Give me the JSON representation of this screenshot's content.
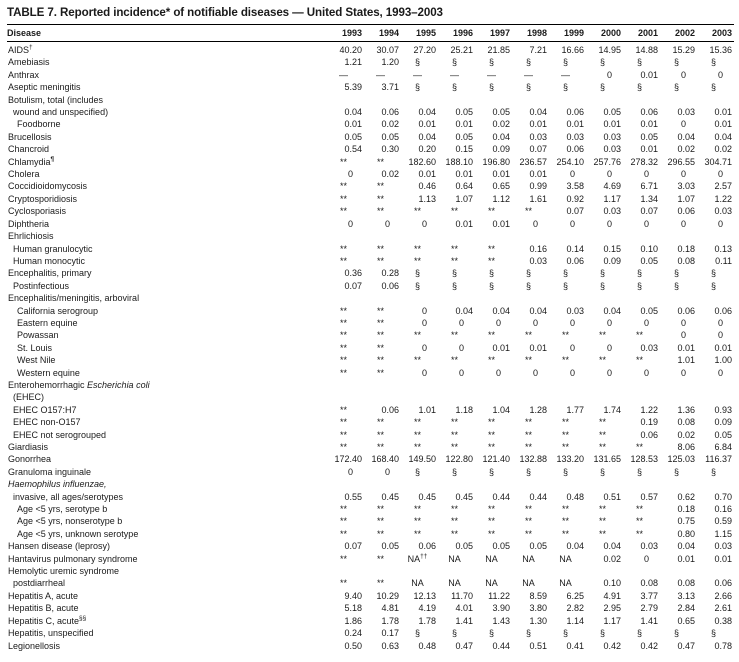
{
  "page": {
    "title": "TABLE 7. Reported incidence* of notifiable diseases — United States, 1993–2003"
  },
  "table": {
    "columns": [
      "Disease",
      "1993",
      "1994",
      "1995",
      "1996",
      "1997",
      "1998",
      "1999",
      "2000",
      "2001",
      "2002",
      "2003"
    ],
    "rows": [
      {
        "label": "AIDS",
        "sup": "†",
        "indent": 0,
        "values": [
          "40.20",
          "30.07",
          "27.20",
          "25.21",
          "21.85",
          "7.21",
          "16.66",
          "14.95",
          "14.88",
          "15.29",
          "15.36"
        ]
      },
      {
        "label": "Amebiasis",
        "indent": 0,
        "values": [
          "1.21",
          "1.20",
          "§",
          "§",
          "§",
          "§",
          "§",
          "§",
          "§",
          "§",
          "§"
        ]
      },
      {
        "label": "Anthrax",
        "indent": 0,
        "values": [
          "—",
          "—",
          "—",
          "—",
          "—",
          "—",
          "—",
          "0",
          "0.01",
          "0",
          "0"
        ]
      },
      {
        "label": "Aseptic meningitis",
        "indent": 0,
        "values": [
          "5.39",
          "3.71",
          "§",
          "§",
          "§",
          "§",
          "§",
          "§",
          "§",
          "§",
          "§"
        ]
      },
      {
        "label": "Botulism, total (includes",
        "indent": 0,
        "values": []
      },
      {
        "label": "wound and unspecified)",
        "indent": 1,
        "values": [
          "0.04",
          "0.06",
          "0.04",
          "0.05",
          "0.05",
          "0.04",
          "0.06",
          "0.05",
          "0.06",
          "0.03",
          "0.01"
        ]
      },
      {
        "label": "Foodborne",
        "indent": 2,
        "values": [
          "0.01",
          "0.02",
          "0.01",
          "0.01",
          "0.02",
          "0.01",
          "0.01",
          "0.01",
          "0.01",
          "0",
          "0.01"
        ]
      },
      {
        "label": "Brucellosis",
        "indent": 0,
        "values": [
          "0.05",
          "0.05",
          "0.04",
          "0.05",
          "0.04",
          "0.03",
          "0.03",
          "0.03",
          "0.05",
          "0.04",
          "0.04"
        ]
      },
      {
        "label": "Chancroid",
        "indent": 0,
        "values": [
          "0.54",
          "0.30",
          "0.20",
          "0.15",
          "0.09",
          "0.07",
          "0.06",
          "0.03",
          "0.01",
          "0.02",
          "0.02"
        ]
      },
      {
        "label": "Chlamydia",
        "sup": "¶",
        "sup_bold": true,
        "indent": 0,
        "values": [
          "**",
          "**",
          "182.60",
          "188.10",
          "196.80",
          "236.57",
          "254.10",
          "257.76",
          "278.32",
          "296.55",
          "304.71"
        ]
      },
      {
        "label": "Cholera",
        "indent": 0,
        "values": [
          "0",
          "0.02",
          "0.01",
          "0.01",
          "0.01",
          "0.01",
          "0",
          "0",
          "0",
          "0",
          "0"
        ]
      },
      {
        "label": "Coccidioidomycosis",
        "indent": 0,
        "values": [
          "**",
          "**",
          "0.46",
          "0.64",
          "0.65",
          "0.99",
          "3.58",
          "4.69",
          "6.71",
          "3.03",
          "2.57"
        ]
      },
      {
        "label": "Cryptosporidiosis",
        "indent": 0,
        "values": [
          "**",
          "**",
          "1.13",
          "1.07",
          "1.12",
          "1.61",
          "0.92",
          "1.17",
          "1.34",
          "1.07",
          "1.22"
        ]
      },
      {
        "label": "Cyclosporiasis",
        "indent": 0,
        "values": [
          "**",
          "**",
          "**",
          "**",
          "**",
          "**",
          "0.07",
          "0.03",
          "0.07",
          "0.06",
          "0.03"
        ]
      },
      {
        "label": "Diphtheria",
        "indent": 0,
        "values": [
          "0",
          "0",
          "0",
          "0.01",
          "0.01",
          "0",
          "0",
          "0",
          "0",
          "0",
          "0"
        ]
      },
      {
        "label": "Ehrlichiosis",
        "indent": 0,
        "values": []
      },
      {
        "label": "Human granulocytic",
        "indent": 1,
        "values": [
          "**",
          "**",
          "**",
          "**",
          "**",
          "0.16",
          "0.14",
          "0.15",
          "0.10",
          "0.18",
          "0.13"
        ]
      },
      {
        "label": "Human monocytic",
        "indent": 1,
        "values": [
          "**",
          "**",
          "**",
          "**",
          "**",
          "0.03",
          "0.06",
          "0.09",
          "0.05",
          "0.08",
          "0.11"
        ]
      },
      {
        "label": "Encephalitis, primary",
        "indent": 0,
        "values": [
          "0.36",
          "0.28",
          "§",
          "§",
          "§",
          "§",
          "§",
          "§",
          "§",
          "§",
          "§"
        ]
      },
      {
        "label": "Postinfectious",
        "indent": 1,
        "values": [
          "0.07",
          "0.06",
          "§",
          "§",
          "§",
          "§",
          "§",
          "§",
          "§",
          "§",
          "§"
        ]
      },
      {
        "label": "Encephalitis/meningitis, arboviral",
        "indent": 0,
        "values": []
      },
      {
        "label": "California serogroup",
        "indent": 2,
        "values": [
          "**",
          "**",
          "0",
          "0.04",
          "0.04",
          "0.04",
          "0.03",
          "0.04",
          "0.05",
          "0.06",
          "0.06"
        ]
      },
      {
        "label": "Eastern equine",
        "indent": 2,
        "values": [
          "**",
          "**",
          "0",
          "0",
          "0",
          "0",
          "0",
          "0",
          "0",
          "0",
          "0"
        ]
      },
      {
        "label": "Powassan",
        "indent": 2,
        "values": [
          "**",
          "**",
          "**",
          "**",
          "**",
          "**",
          "**",
          "**",
          "**",
          "0",
          "0"
        ]
      },
      {
        "label": "St. Louis",
        "indent": 2,
        "values": [
          "**",
          "**",
          "0",
          "0",
          "0.01",
          "0.01",
          "0",
          "0",
          "0.03",
          "0.01",
          "0.01"
        ]
      },
      {
        "label": "West Nile",
        "indent": 2,
        "values": [
          "**",
          "**",
          "**",
          "**",
          "**",
          "**",
          "**",
          "**",
          "**",
          "1.01",
          "1.00"
        ]
      },
      {
        "label": "Western equine",
        "indent": 2,
        "values": [
          "**",
          "**",
          "0",
          "0",
          "0",
          "0",
          "0",
          "0",
          "0",
          "0",
          "0"
        ]
      },
      {
        "parts": [
          [
            "Enterohemorrhagic ",
            false
          ],
          [
            "Escherichia coli",
            true
          ]
        ],
        "indent": 0,
        "values": []
      },
      {
        "label": "(EHEC)",
        "indent": 1,
        "values": []
      },
      {
        "label": "EHEC O157:H7",
        "indent": 1,
        "values": [
          "**",
          "0.06",
          "1.01",
          "1.18",
          "1.04",
          "1.28",
          "1.77",
          "1.74",
          "1.22",
          "1.36",
          "0.93"
        ]
      },
      {
        "label": "EHEC non-O157",
        "indent": 1,
        "values": [
          "**",
          "**",
          "**",
          "**",
          "**",
          "**",
          "**",
          "**",
          "0.19",
          "0.08",
          "0.09"
        ]
      },
      {
        "label": "EHEC not serogrouped",
        "indent": 1,
        "values": [
          "**",
          "**",
          "**",
          "**",
          "**",
          "**",
          "**",
          "**",
          "0.06",
          "0.02",
          "0.05"
        ]
      },
      {
        "label": "Giardiasis",
        "indent": 0,
        "values": [
          "**",
          "**",
          "**",
          "**",
          "**",
          "**",
          "**",
          "**",
          "**",
          "8.06",
          "6.84"
        ]
      },
      {
        "label": "Gonorrhea",
        "indent": 0,
        "values": [
          "172.40",
          "168.40",
          "149.50",
          "122.80",
          "121.40",
          "132.88",
          "133.20",
          "131.65",
          "128.53",
          "125.03",
          "116.37"
        ]
      },
      {
        "label": "Granuloma inguinale",
        "indent": 0,
        "values": [
          "0",
          "0",
          "§",
          "§",
          "§",
          "§",
          "§",
          "§",
          "§",
          "§",
          "§"
        ]
      },
      {
        "parts": [
          [
            "Haemophilus influenzae,",
            true
          ]
        ],
        "indent": 0,
        "values": []
      },
      {
        "label": "invasive, all ages/serotypes",
        "indent": 1,
        "values": [
          "0.55",
          "0.45",
          "0.45",
          "0.45",
          "0.44",
          "0.44",
          "0.48",
          "0.51",
          "0.57",
          "0.62",
          "0.70"
        ]
      },
      {
        "label": "Age <5 yrs, serotype b",
        "indent": 2,
        "values": [
          "**",
          "**",
          "**",
          "**",
          "**",
          "**",
          "**",
          "**",
          "**",
          "0.18",
          "0.16"
        ]
      },
      {
        "label": "Age <5 yrs, nonserotype b",
        "indent": 2,
        "values": [
          "**",
          "**",
          "**",
          "**",
          "**",
          "**",
          "**",
          "**",
          "**",
          "0.75",
          "0.59"
        ]
      },
      {
        "label": "Age <5 yrs, unknown serotype",
        "indent": 2,
        "values": [
          "**",
          "**",
          "**",
          "**",
          "**",
          "**",
          "**",
          "**",
          "**",
          "0.80",
          "1.15"
        ]
      },
      {
        "label": "Hansen disease (leprosy)",
        "indent": 0,
        "values": [
          "0.07",
          "0.05",
          "0.06",
          "0.05",
          "0.05",
          "0.05",
          "0.04",
          "0.04",
          "0.03",
          "0.04",
          "0.03"
        ]
      },
      {
        "label": "Hantavirus pulmonary syndrome",
        "indent": 0,
        "values": [
          "**",
          "**",
          {
            "v": "NA",
            "sup": "††"
          },
          "NA",
          "NA",
          "NA",
          "NA",
          "0.02",
          "0",
          "0.01",
          "0.01"
        ]
      },
      {
        "label": "Hemolytic uremic syndrome",
        "indent": 0,
        "values": []
      },
      {
        "label": "postdiarrheal",
        "indent": 1,
        "values": [
          "**",
          "**",
          "NA",
          "NA",
          "NA",
          "NA",
          "NA",
          "0.10",
          "0.08",
          "0.08",
          "0.06"
        ]
      },
      {
        "label": "Hepatitis A, acute",
        "indent": 0,
        "values": [
          "9.40",
          "10.29",
          "12.13",
          "11.70",
          "11.22",
          "8.59",
          "6.25",
          "4.91",
          "3.77",
          "3.13",
          "2.66"
        ]
      },
      {
        "label": "Hepatitis B, acute",
        "indent": 0,
        "values": [
          "5.18",
          "4.81",
          "4.19",
          "4.01",
          "3.90",
          "3.80",
          "2.82",
          "2.95",
          "2.79",
          "2.84",
          "2.61"
        ]
      },
      {
        "label": "Hepatitis C, acute",
        "sup": "§§",
        "indent": 0,
        "values": [
          "1.86",
          "1.78",
          "1.78",
          "1.41",
          "1.43",
          "1.30",
          "1.14",
          "1.17",
          "1.41",
          "0.65",
          "0.38"
        ]
      },
      {
        "label": "Hepatitis, unspecified",
        "indent": 0,
        "values": [
          "0.24",
          "0.17",
          "§",
          "§",
          "§",
          "§",
          "§",
          "§",
          "§",
          "§",
          "§"
        ]
      },
      {
        "label": "Legionellosis",
        "indent": 0,
        "values": [
          "0.50",
          "0.63",
          "0.48",
          "0.47",
          "0.44",
          "0.51",
          "0.41",
          "0.42",
          "0.42",
          "0.47",
          "0.78"
        ]
      }
    ]
  }
}
